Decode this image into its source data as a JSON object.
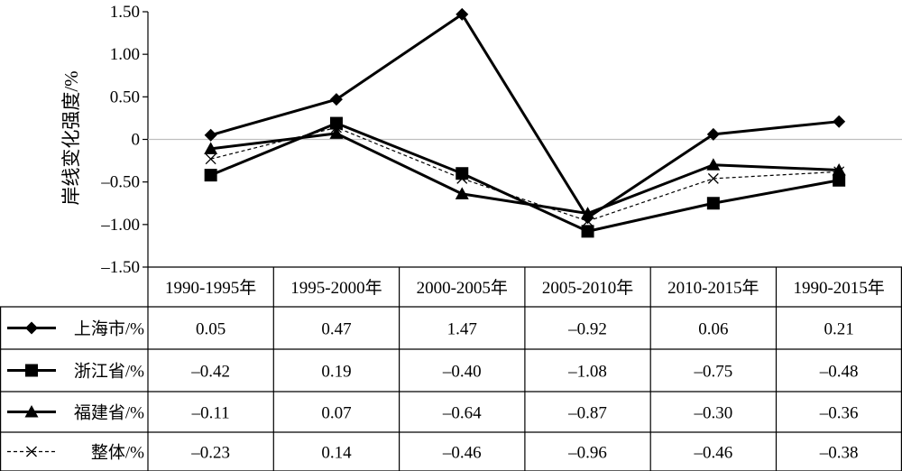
{
  "chart_data": {
    "type": "line",
    "ylabel": "岸线变化强度/%",
    "ylim": [
      -1.5,
      1.5
    ],
    "yticks": [
      1.5,
      1.0,
      0.5,
      0,
      -0.5,
      -1.0,
      -1.5
    ],
    "ytick_labels": [
      "1.50",
      "1.00",
      "0.50",
      "0",
      "–0.50",
      "–1.00",
      "–1.50"
    ],
    "categories": [
      "1990-1995年",
      "1995-2000年",
      "2000-2005年",
      "2005-2010年",
      "2010-2015年",
      "1990-2015年"
    ],
    "zero_line": true,
    "legend_placement": "table-left",
    "series": [
      {
        "name": "上海市/%",
        "marker": "diamond",
        "dash": "solid",
        "values": [
          0.05,
          0.47,
          1.47,
          -0.92,
          0.06,
          0.21
        ],
        "labels": [
          "0.05",
          "0.47",
          "1.47",
          "–0.92",
          "0.06",
          "0.21"
        ]
      },
      {
        "name": "浙江省/%",
        "marker": "square",
        "dash": "solid",
        "values": [
          -0.42,
          0.19,
          -0.4,
          -1.08,
          -0.75,
          -0.48
        ],
        "labels": [
          "–0.42",
          "0.19",
          "–0.40",
          "–1.08",
          "–0.75",
          "–0.48"
        ]
      },
      {
        "name": "福建省/%",
        "marker": "triangle",
        "dash": "solid",
        "values": [
          -0.11,
          0.07,
          -0.64,
          -0.87,
          -0.3,
          -0.36
        ],
        "labels": [
          "–0.11",
          "0.07",
          "–0.64",
          "–0.87",
          "–0.30",
          "–0.36"
        ]
      },
      {
        "name": "整体/%",
        "marker": "x",
        "dash": "dashed",
        "values": [
          -0.23,
          0.14,
          -0.46,
          -0.96,
          -0.46,
          -0.38
        ],
        "labels": [
          "–0.23",
          "0.14",
          "–0.46",
          "–0.96",
          "–0.46",
          "–0.38"
        ]
      }
    ],
    "colors": {
      "line": "#000000",
      "zero_line": "#bfbfbf",
      "grid": "#000000"
    }
  }
}
